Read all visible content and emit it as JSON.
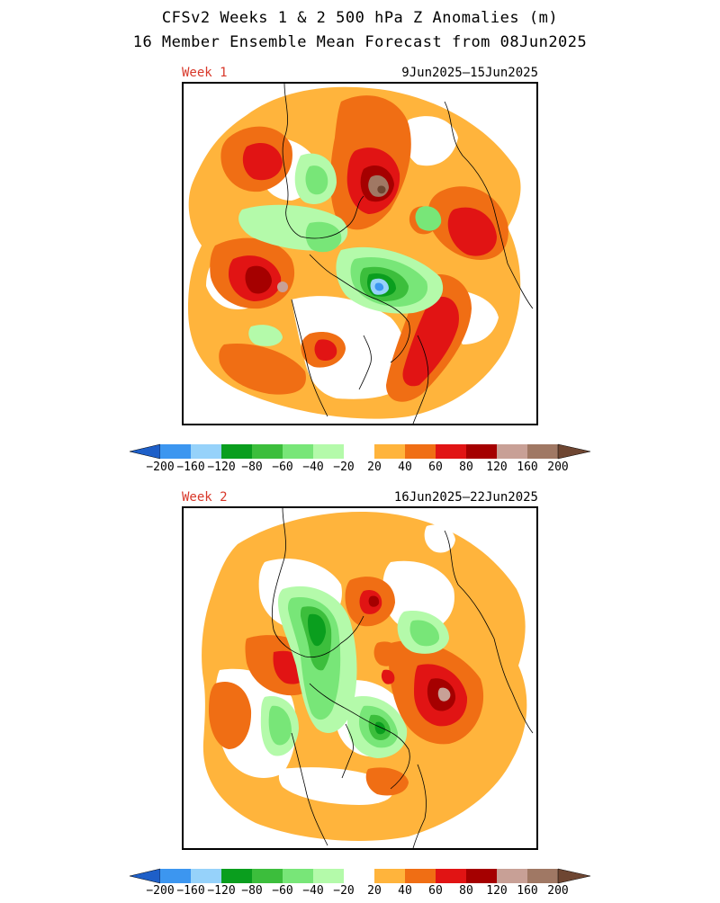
{
  "header": {
    "title_line1": "CFSv2 Weeks 1 & 2 500 hPa Z Anomalies (m)",
    "title_line2": "16 Member Ensemble Mean Forecast from 08Jun2025"
  },
  "panels": [
    {
      "week_label": "Week 1",
      "date_range": "9Jun2025–15Jun2025"
    },
    {
      "week_label": "Week 2",
      "date_range": "16Jun2025–22Jun2025"
    }
  ],
  "colorbar": {
    "labels": [
      "−200",
      "−160",
      "−120",
      "−80",
      "−60",
      "−40",
      "−20",
      "20",
      "40",
      "60",
      "80",
      "120",
      "160",
      "200"
    ],
    "colors": [
      "#1e5fc8",
      "#3c96f0",
      "#96d2fa",
      "#0a9e1e",
      "#3cbe3c",
      "#78e678",
      "#b4faaa",
      "#ffffff",
      "#ffb43c",
      "#f06e14",
      "#e11414",
      "#a50000",
      "#c8a096",
      "#a07864",
      "#6e4632"
    ]
  },
  "colors": {
    "week_label": "#d8382a",
    "green_dark": "#0a9e1e",
    "green_mid": "#3cbe3c",
    "green_light": "#78e678",
    "green_pale": "#b4faaa",
    "blue_light": "#96d2fa",
    "blue_mid": "#3c96f0",
    "orange_light": "#ffb43c",
    "orange": "#f06e14",
    "red": "#e11414",
    "dark_red": "#a50000",
    "tan": "#c8a096",
    "brown": "#a07864",
    "dark_brown": "#6e4632"
  }
}
